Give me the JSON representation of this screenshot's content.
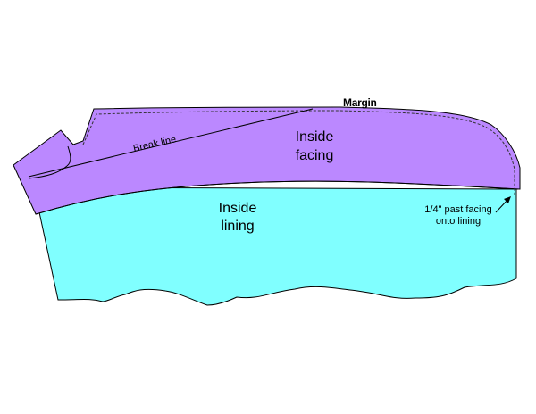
{
  "colors": {
    "facing": "#bb88ff",
    "lining": "#80ffff",
    "outline": "#000000",
    "background": "#ffffff"
  },
  "labels": {
    "margin": "Margin",
    "break_line": "Break line",
    "facing_line1": "Inside",
    "facing_line2": "facing",
    "lining_line1": "Inside",
    "lining_line2": "lining",
    "note_line1": "1/4\" past facing",
    "note_line2": "onto lining"
  }
}
